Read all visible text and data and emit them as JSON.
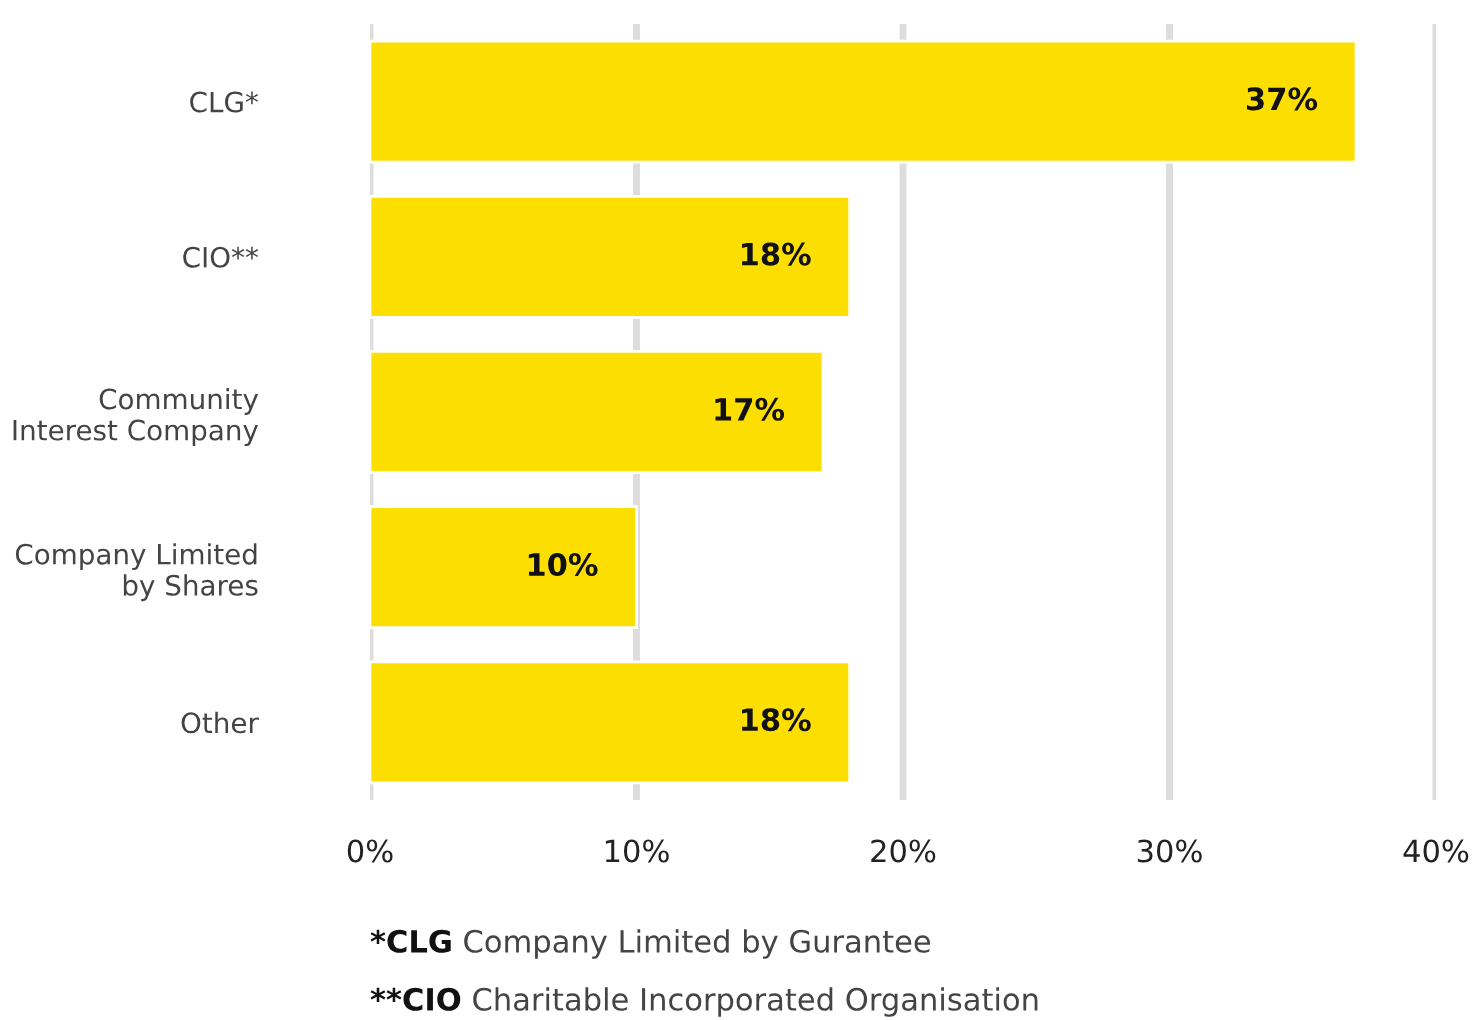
{
  "chart_data": {
    "type": "bar",
    "orientation": "horizontal",
    "categories": [
      "CLG*",
      "CIO**",
      "Community\nInterest Company",
      "Company Limited\nby Shares",
      "Other"
    ],
    "values": [
      37,
      18,
      17,
      10,
      18
    ],
    "value_labels": [
      "37%",
      "18%",
      "17%",
      "10%",
      "18%"
    ],
    "color": "#fcdf00",
    "xlim": [
      0,
      40
    ],
    "xticks": [
      {
        "value": 0,
        "label": "0%"
      },
      {
        "value": 10,
        "label": "10%"
      },
      {
        "value": 20,
        "label": "20%"
      },
      {
        "value": 30,
        "label": "30%"
      },
      {
        "value": 40,
        "label": "40%"
      }
    ],
    "grid": "x",
    "annotations": [
      "*CLG Company Limited by Gurantee",
      "**CIO Charitable Incorporated Organisation"
    ]
  }
}
